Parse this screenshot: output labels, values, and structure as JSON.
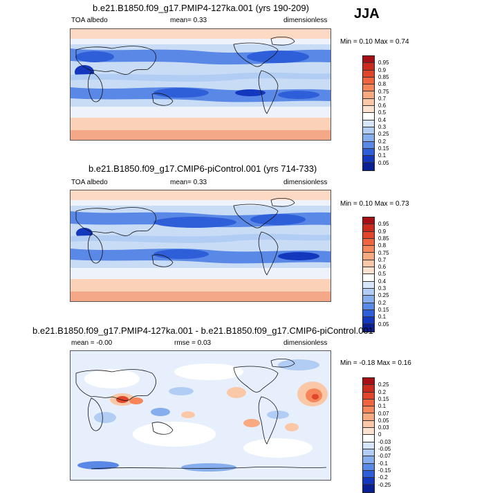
{
  "season": "JJA",
  "panels": [
    {
      "title": "b.e21.B1850.f09_g17.PMIP4-127ka.001 (yrs 190-209)",
      "variable": "TOA albedo",
      "mean_text": "mean=   0.33",
      "units": "dimensionless",
      "minmax_text": "Min =   0.10 Max =   0.74",
      "colorbar_labels": [
        "0.95",
        "0.9",
        "0.85",
        "0.8",
        "0.75",
        "0.7",
        "0.6",
        "0.5",
        "0.4",
        "0.3",
        "0.25",
        "0.2",
        "0.15",
        "0.1",
        "0.05"
      ],
      "colorbar_colors": [
        "#a50f15",
        "#cb2b1d",
        "#e2462a",
        "#f0653d",
        "#f6865a",
        "#f9a97f",
        "#fbc8a7",
        "#fde3cf",
        "#ffffff",
        "#d6e6f8",
        "#b2cdf4",
        "#86adee",
        "#5a88e6",
        "#2f5fd8",
        "#1337bd",
        "#0a1f92"
      ]
    },
    {
      "title": "b.e21.B1850.f09_g17.CMIP6-piControl.001 (yrs 714-733)",
      "variable": "TOA albedo",
      "mean_text": "mean=   0.33",
      "units": "dimensionless",
      "minmax_text": "Min =   0.10 Max =   0.73",
      "colorbar_labels": [
        "0.95",
        "0.9",
        "0.85",
        "0.8",
        "0.75",
        "0.7",
        "0.6",
        "0.5",
        "0.4",
        "0.3",
        "0.25",
        "0.2",
        "0.15",
        "0.1",
        "0.05"
      ],
      "colorbar_colors": [
        "#a50f15",
        "#cb2b1d",
        "#e2462a",
        "#f0653d",
        "#f6865a",
        "#f9a97f",
        "#fbc8a7",
        "#fde3cf",
        "#ffffff",
        "#d6e6f8",
        "#b2cdf4",
        "#86adee",
        "#5a88e6",
        "#2f5fd8",
        "#1337bd",
        "#0a1f92"
      ]
    },
    {
      "title": "b.e21.B1850.f09_g17.PMIP4-127ka.001 - b.e21.B1850.f09_g17.CMIP6-piControl.001",
      "mean_text": "mean =  -0.00",
      "rmse_text": "rmse =   0.03",
      "units": "dimensionless",
      "minmax_text": "Min =  -0.18 Max =   0.16",
      "colorbar_labels": [
        "0.25",
        "0.2",
        "0.15",
        "0.1",
        "0.07",
        "0.05",
        "0.03",
        "0",
        "-0.03",
        "-0.05",
        "-0.07",
        "-0.1",
        "-0.15",
        "-0.2",
        "-0.25"
      ],
      "colorbar_colors": [
        "#a50f15",
        "#cb2b1d",
        "#e2462a",
        "#f0653d",
        "#f6865a",
        "#f9a97f",
        "#fbc8a7",
        "#fde3cf",
        "#ffffff",
        "#d6e6f8",
        "#b2cdf4",
        "#86adee",
        "#5a88e6",
        "#2f5fd8",
        "#1337bd",
        "#0a1f92"
      ]
    }
  ]
}
